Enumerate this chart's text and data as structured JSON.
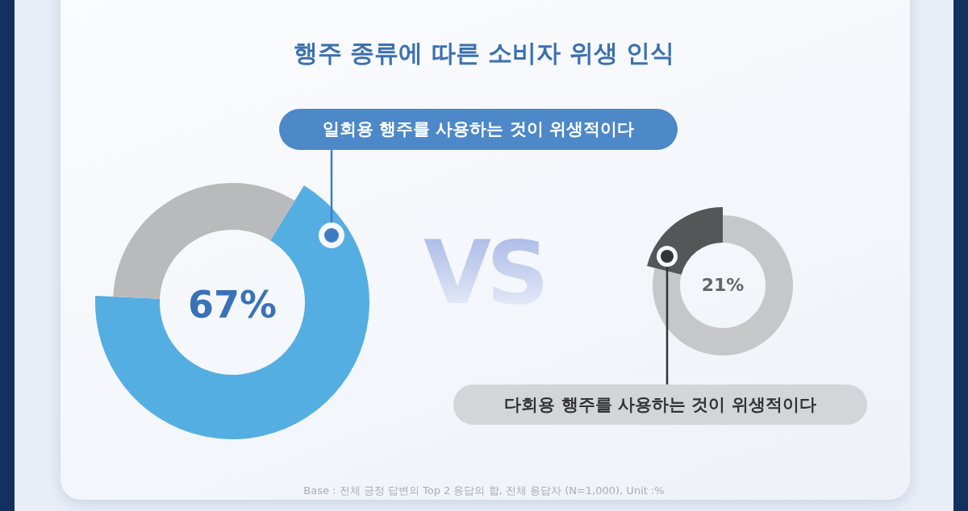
{
  "chart_data": [
    {
      "type": "donut",
      "title": "행주 종류에 따른 소비자 위생 인식",
      "categories": [
        "일회용 행주를 사용하는 것이 위생적이다",
        null
      ],
      "values": [
        67,
        33
      ],
      "colors": [
        "#55aee2",
        "#b9babc"
      ],
      "value_labels": [
        "67%",
        null
      ],
      "annotations": [
        "VS",
        "Base : 전체 긍정 답변의 Top 2 응답의 합, 전체 응답자 (N=1,000), Unit :%"
      ]
    },
    {
      "type": "donut",
      "categories": [
        null,
        "다회용 행주를 사용하는 것이 위생적이다"
      ],
      "values": [
        79,
        21
      ],
      "colors": [
        "#c6c7c8",
        "#555657"
      ],
      "value_labels": [
        null,
        "21%"
      ]
    }
  ]
}
